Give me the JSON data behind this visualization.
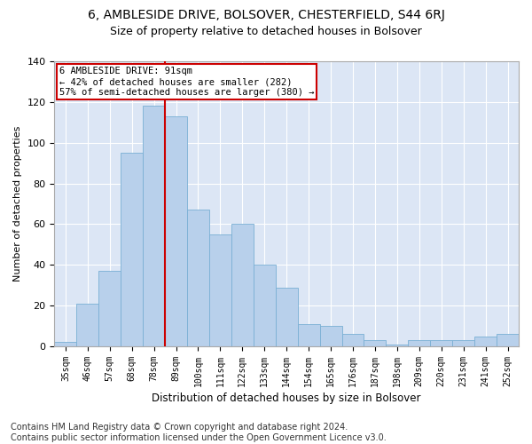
{
  "title": "6, AMBLESIDE DRIVE, BOLSOVER, CHESTERFIELD, S44 6RJ",
  "subtitle": "Size of property relative to detached houses in Bolsover",
  "xlabel": "Distribution of detached houses by size in Bolsover",
  "ylabel": "Number of detached properties",
  "categories": [
    "35sqm",
    "46sqm",
    "57sqm",
    "68sqm",
    "78sqm",
    "89sqm",
    "100sqm",
    "111sqm",
    "122sqm",
    "133sqm",
    "144sqm",
    "154sqm",
    "165sqm",
    "176sqm",
    "187sqm",
    "198sqm",
    "209sqm",
    "220sqm",
    "231sqm",
    "241sqm",
    "252sqm"
  ],
  "values": [
    2,
    21,
    37,
    95,
    118,
    113,
    67,
    55,
    60,
    40,
    29,
    11,
    10,
    6,
    3,
    1,
    3,
    3,
    3,
    5,
    6
  ],
  "bar_color": "#b8d0eb",
  "bar_edge_color": "#7aafd4",
  "vline_x": 4.5,
  "vline_color": "#cc0000",
  "annotation_text": "6 AMBLESIDE DRIVE: 91sqm\n← 42% of detached houses are smaller (282)\n57% of semi-detached houses are larger (380) →",
  "annotation_box_color": "#ffffff",
  "annotation_box_edge": "#cc0000",
  "ylim": [
    0,
    140
  ],
  "yticks": [
    0,
    20,
    40,
    60,
    80,
    100,
    120,
    140
  ],
  "footnote": "Contains HM Land Registry data © Crown copyright and database right 2024.\nContains public sector information licensed under the Open Government Licence v3.0.",
  "fig_background_color": "#ffffff",
  "plot_bg_color": "#dce6f5",
  "title_fontsize": 10,
  "subtitle_fontsize": 9,
  "footnote_fontsize": 7
}
